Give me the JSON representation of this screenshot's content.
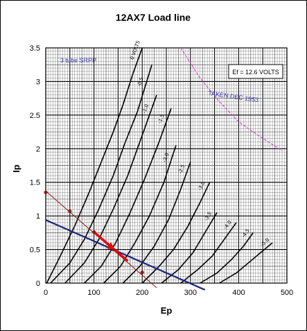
{
  "chart_data": {
    "type": "line",
    "title": "12AX7 Load line",
    "xlabel": "Ep",
    "ylabel": "Ip",
    "xlim": [
      0,
      500
    ],
    "ylim": [
      0,
      3.5
    ],
    "x_ticks": [
      "0",
      "100",
      "200",
      "300",
      "400",
      "500"
    ],
    "y_ticks": [
      "0",
      "0.5",
      "1",
      "1.5",
      "2",
      "2.5",
      "3",
      "3.5"
    ],
    "annotations": {
      "filament": "Ef = 12.6 VOLTS",
      "source": "TAKEN DEC 1953",
      "top_left": "3 tube SRPP"
    },
    "grid": true,
    "curve_labels": [
      "0 VOLTS",
      "-0.5",
      "-1.0",
      "-1.5",
      "-2.0",
      "-2.5",
      "-3.0",
      "-3.5",
      "-4.0",
      "-4.5",
      "-5.0"
    ],
    "plate_curves": [
      {
        "name": "0 VOLTS",
        "x": [
          2,
          30,
          60,
          90,
          115,
          140,
          160,
          180,
          200
        ],
        "y": [
          0,
          0.4,
          0.85,
          1.35,
          1.8,
          2.25,
          2.65,
          3.1,
          3.5
        ]
      },
      {
        "name": "-0.5",
        "x": [
          10,
          50,
          80,
          110,
          140,
          165,
          190,
          220
        ],
        "y": [
          0,
          0.3,
          0.65,
          1.1,
          1.6,
          2.1,
          2.55,
          3.25
        ]
      },
      {
        "name": "-1.0",
        "x": [
          40,
          80,
          110,
          140,
          170,
          200,
          230
        ],
        "y": [
          0,
          0.3,
          0.65,
          1.1,
          1.6,
          2.2,
          2.8
        ]
      },
      {
        "name": "-1.5",
        "x": [
          80,
          115,
          145,
          175,
          205,
          235,
          260
        ],
        "y": [
          0,
          0.25,
          0.6,
          1.05,
          1.55,
          2.1,
          2.6
        ]
      },
      {
        "name": "-2.0",
        "x": [
          120,
          155,
          185,
          215,
          245,
          270
        ],
        "y": [
          0,
          0.25,
          0.6,
          1.0,
          1.5,
          2.05
        ]
      },
      {
        "name": "-2.5",
        "x": [
          160,
          195,
          225,
          255,
          280,
          300
        ],
        "y": [
          0,
          0.25,
          0.55,
          0.95,
          1.4,
          1.8
        ]
      },
      {
        "name": "-3.0",
        "x": [
          200,
          235,
          265,
          295,
          320,
          340
        ],
        "y": [
          0,
          0.25,
          0.5,
          0.85,
          1.2,
          1.5
        ]
      },
      {
        "name": "-3.5",
        "x": [
          240,
          275,
          305,
          330,
          355
        ],
        "y": [
          0,
          0.2,
          0.45,
          0.75,
          1.05
        ]
      },
      {
        "name": "-4.0",
        "x": [
          280,
          315,
          345,
          370,
          395
        ],
        "y": [
          0,
          0.2,
          0.4,
          0.65,
          0.9
        ]
      },
      {
        "name": "-4.5",
        "x": [
          320,
          355,
          385,
          410,
          430
        ],
        "y": [
          0,
          0.15,
          0.35,
          0.55,
          0.75
        ]
      },
      {
        "name": "-5.0",
        "x": [
          360,
          395,
          420,
          445,
          470
        ],
        "y": [
          0,
          0.15,
          0.3,
          0.45,
          0.6
        ]
      }
    ],
    "load_lines": [
      {
        "name": "",
        "color": "#8b1a1a",
        "x": [
          0,
          230
        ],
        "y": [
          1.37,
          -0.07
        ]
      },
      {
        "name": "",
        "color": "#1a237e",
        "x": [
          0,
          330
        ],
        "y": [
          0.94,
          -0.1
        ]
      }
    ],
    "max_dissipation_curve": {
      "color": "#cc33cc",
      "x": [
        280,
        320,
        360,
        400,
        440,
        490
      ],
      "y": [
        3.5,
        3.05,
        2.7,
        2.4,
        2.2,
        1.97
      ]
    },
    "load_points": {
      "x": [
        0,
        50,
        100,
        140,
        200
      ],
      "y": [
        1.35,
        1.07,
        0.76,
        0.5,
        0.16
      ]
    },
    "operating_point": {
      "x": [
        135
      ],
      "y": [
        0.55
      ]
    },
    "highlight_segment": {
      "color": "#ee0000",
      "x": [
        100,
        170
      ],
      "y": [
        0.76,
        0.33
      ]
    },
    "colors": {
      "grid_major": "#000000",
      "grid_minor": "#555555",
      "load_points": "#8b1a1a",
      "operating_point": "#ee0000"
    }
  }
}
